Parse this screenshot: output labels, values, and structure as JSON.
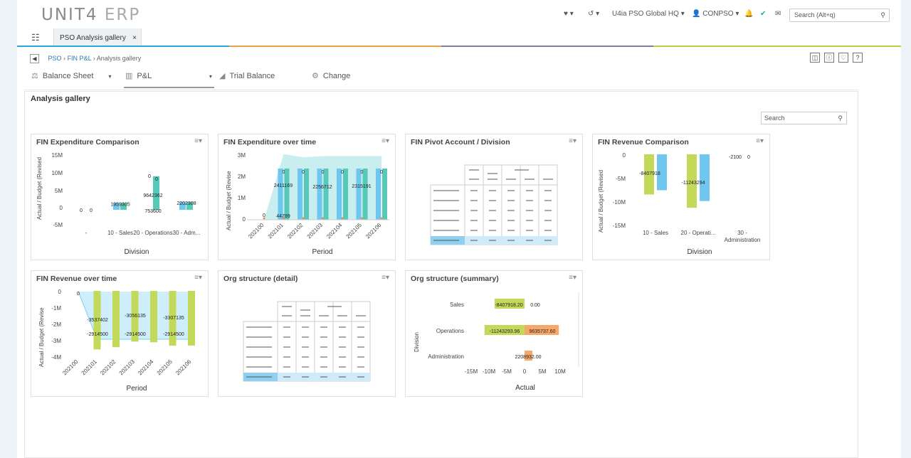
{
  "header": {
    "logo_brand": "UNIT4",
    "logo_product": "ERP",
    "company": "U4ia PSO Global HQ",
    "user": "CONPSO",
    "search_placeholder": "Search (Alt+q)"
  },
  "tabs": [
    {
      "label": "PSO  Analysis gallery",
      "close": "×"
    }
  ],
  "breadcrumb": {
    "items": [
      "PSO",
      "FIN P&L",
      "Analysis gallery"
    ],
    "sep": "›"
  },
  "menu_tabs": [
    {
      "label": "Balance Sheet"
    },
    {
      "label": "P&L"
    },
    {
      "label": "Trial Balance"
    },
    {
      "label": "Change"
    }
  ],
  "page": {
    "title": "Analysis gallery",
    "search_placeholder": "Search"
  },
  "cards": [
    {
      "title": "FIN Expenditure Comparison"
    },
    {
      "title": "FIN Expenditure over time"
    },
    {
      "title": "FIN Pivot Account / Division"
    },
    {
      "title": "FIN Revenue Comparison"
    },
    {
      "title": "FIN Revenue over time"
    },
    {
      "title": "Org structure (detail)"
    },
    {
      "title": "Org structure (summary)"
    }
  ],
  "chart_data": [
    {
      "type": "bar",
      "title": "FIN Expenditure Comparison",
      "xlabel": "Division",
      "ylabel": "Actual / Budget (Revised",
      "yticks": [
        "15M",
        "10M",
        "5M",
        "0",
        "-5M"
      ],
      "categories": [
        "-",
        "10 - Sales",
        "20 - Operations",
        "30 - Adm..."
      ],
      "series": [
        {
          "values": [
            0,
            1959305,
            0,
            2202308
          ]
        },
        {
          "values": [
            0,
            1959305,
            9642362,
            2202308
          ]
        }
      ],
      "labels": [
        {
          "text": "0",
          "cat": 0,
          "val": 0
        },
        {
          "text": "0",
          "cat": 0,
          "val": 0
        },
        {
          "text": "1959305",
          "cat": 1,
          "val": 1959305
        },
        {
          "text": "0",
          "cat": 2,
          "val": 10000000
        },
        {
          "text": "0",
          "cat": 2,
          "val": 9200000
        },
        {
          "text": "9642362",
          "cat": 2,
          "val": 4500000
        },
        {
          "text": "753600",
          "cat": 2,
          "val": 0
        },
        {
          "text": "2202308",
          "cat": 3,
          "val": 2202308
        }
      ],
      "ylim": [
        -5000000,
        15000000
      ]
    },
    {
      "type": "bar",
      "title": "FIN Expenditure over time",
      "xlabel": "Period",
      "ylabel": "Actual / Budget (Revise",
      "yticks": [
        "3M",
        "2M",
        "1M",
        "0"
      ],
      "categories": [
        "202100",
        "202101",
        "202102",
        "202103",
        "202104",
        "202105",
        "202106"
      ],
      "series": [
        {
          "values": [
            0,
            2411169,
            2256712,
            2315191,
            2315191,
            2315191,
            2315191
          ]
        },
        {
          "values": [
            0,
            2411169,
            2256712,
            2315191,
            2315191,
            2315191,
            2315191
          ]
        }
      ],
      "labels": [
        "0",
        "44789",
        "2411169",
        "2256712",
        "2315191"
      ],
      "ylim": [
        0,
        3000000
      ]
    },
    {
      "type": "bar",
      "title": "FIN Revenue Comparison",
      "xlabel": "Division",
      "ylabel": "Actual / Budget (Revised",
      "yticks": [
        "0",
        "-5M",
        "-10M",
        "-15M"
      ],
      "categories": [
        "10 - Sales",
        "20 - Operati...",
        "30 - Administration"
      ],
      "series": [
        {
          "values": [
            -8407918,
            -11243294,
            0
          ]
        },
        {
          "values": [
            -7500000,
            -9800000,
            0
          ]
        }
      ],
      "labels": [
        "-8407918",
        "-11243294",
        "-2100",
        "0"
      ],
      "ylim": [
        -15000000,
        0
      ]
    },
    {
      "type": "bar",
      "title": "FIN Revenue over time",
      "xlabel": "Period",
      "ylabel": "Actual / Budget (Revise",
      "yticks": [
        "0",
        "-1M",
        "-2M",
        "-3M",
        "-4M"
      ],
      "categories": [
        "202100",
        "202101",
        "202102",
        "202103",
        "202104",
        "202105",
        "202106"
      ],
      "series": [
        {
          "values": [
            0,
            -3537402,
            -3400000,
            -3056135,
            -3100000,
            -3307135,
            -3300000
          ]
        },
        {
          "values": [
            0,
            -2914500,
            -2914500,
            -2914500,
            -2914500,
            -2914500,
            -2914500
          ]
        }
      ],
      "labels": [
        "0",
        "-3537402",
        "-3056135",
        "-3307135",
        "-2914500",
        "-2914500",
        "-2914500"
      ],
      "ylim": [
        -4000000,
        0
      ]
    },
    {
      "type": "bar",
      "title": "Org structure (summary)",
      "xlabel": "Actual",
      "ylabel": "Division",
      "xticks": [
        "-15M",
        "-10M",
        "-5M",
        "0",
        "5M",
        "10M"
      ],
      "categories": [
        "Sales",
        "Operations",
        "Administration"
      ],
      "series": [
        {
          "values": [
            -8407918.2,
            -11243293.96,
            0
          ]
        },
        {
          "values": [
            0.0,
            9635737.6,
            2208932.0
          ]
        }
      ],
      "labels": [
        "-8407918.20",
        "0.00",
        "-11243293.96",
        "9635737.60",
        "2208932.00"
      ],
      "xlim": [
        -15000000,
        12000000
      ]
    }
  ]
}
